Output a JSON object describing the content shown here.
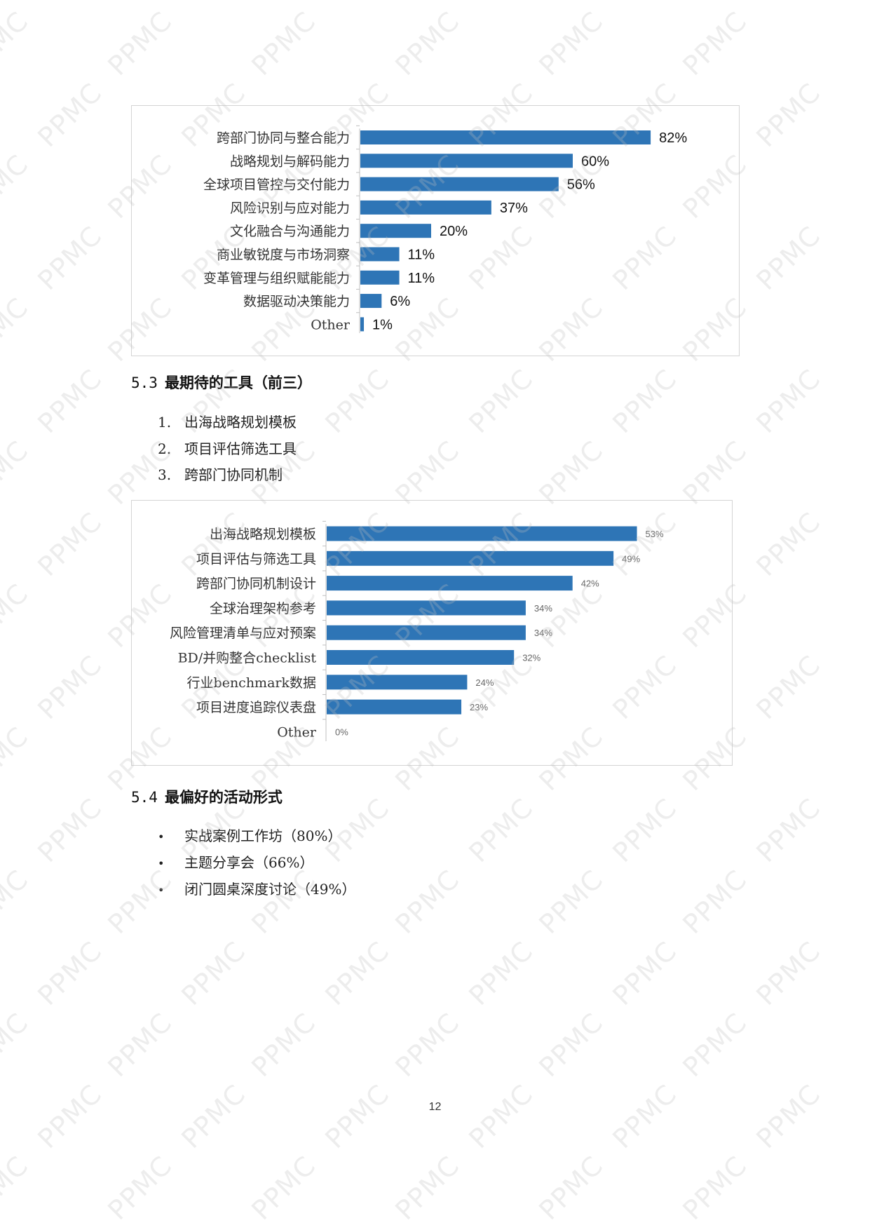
{
  "chart_data": [
    {
      "type": "bar",
      "orientation": "horizontal",
      "categories": [
        "跨部门协同与整合能力",
        "战略规划与解码能力",
        "全球项目管控与交付能力",
        "风险识别与应对能力",
        "文化融合与沟通能力",
        "商业敏锐度与市场洞察",
        "变革管理与组织赋能能力",
        "数据驱动决策能力",
        "Other"
      ],
      "values": [
        82,
        60,
        56,
        37,
        20,
        11,
        11,
        6,
        1
      ],
      "labels": [
        "82%",
        "60%",
        "56%",
        "37%",
        "20%",
        "11%",
        "11%",
        "6%",
        "1%"
      ],
      "xlim": [
        0,
        100
      ],
      "bar_color": "#2e75b6",
      "grid": false,
      "legend": "none"
    },
    {
      "type": "bar",
      "orientation": "horizontal",
      "categories": [
        "出海战略规划模板",
        "项目评估与筛选工具",
        "跨部门协同机制设计",
        "全球治理架构参考",
        "风险管理清单与应对预案",
        "BD/并购整合checklist",
        "行业benchmark数据",
        "项目进度追踪仪表盘",
        "Other"
      ],
      "values": [
        53,
        49,
        42,
        34,
        34,
        32,
        24,
        23,
        0
      ],
      "labels": [
        "53%",
        "49%",
        "42%",
        "34%",
        "34%",
        "32%",
        "24%",
        "23%",
        "0%"
      ],
      "xlim": [
        0,
        70
      ],
      "bar_color": "#2e75b6",
      "grid": false,
      "legend": "none"
    }
  ],
  "section_53": {
    "number": "5.3",
    "title": "最期待的工具（前三）",
    "items": [
      {
        "marker": "1.",
        "text": "出海战略规划模板"
      },
      {
        "marker": "2.",
        "text": "项目评估筛选工具"
      },
      {
        "marker": "3.",
        "text": "跨部门协同机制"
      }
    ]
  },
  "section_54": {
    "number": "5.4",
    "title": "最偏好的活动形式",
    "items": [
      {
        "marker": "•",
        "text": "实战案例工作坊（80%）"
      },
      {
        "marker": "•",
        "text": "主题分享会（66%）"
      },
      {
        "marker": "•",
        "text": "闭门圆桌深度讨论（49%）"
      }
    ]
  },
  "watermark": {
    "text": "PPMC",
    "color": "#bebebe"
  },
  "page_number": "12"
}
